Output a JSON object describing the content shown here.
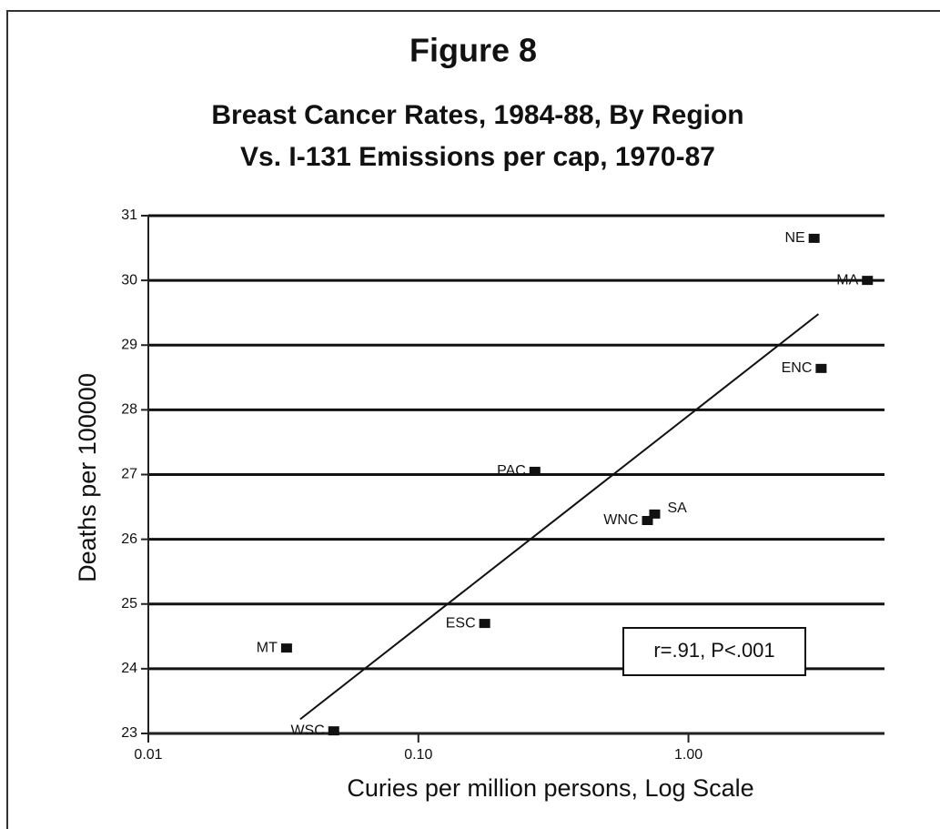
{
  "chart_data": {
    "type": "scatter",
    "title": "Figure 8",
    "subtitle": [
      "Breast Cancer Rates, 1984-88, By Region",
      "Vs. I-131 Emissions per cap, 1970-87"
    ],
    "xlabel": "Curies per million persons, Log Scale",
    "ylabel": "Deaths per 100000",
    "log_x": true,
    "grid": true,
    "color": "#111111",
    "labels": [
      "NE",
      "MA",
      "ENC",
      "PAC",
      "WNC",
      "SA",
      "ESC",
      "MT",
      "WSC"
    ],
    "x": [
      2.92,
      4.6,
      3.1,
      0.27,
      0.705,
      0.75,
      0.176,
      0.0325,
      0.0486
    ],
    "y": [
      30.65,
      30.0,
      28.64,
      27.05,
      26.29,
      26.39,
      24.7,
      24.32,
      23.04
    ],
    "trend_line": {
      "x": [
        0.0365,
        3.03
      ],
      "y": [
        23.22,
        29.48
      ]
    },
    "annotation": "r=.91, P<.001",
    "xlim": [
      0.01,
      5
    ],
    "xticks": [
      0.01,
      {
        "value": 0.1,
        "label": "0.10"
      },
      {
        "value": 1,
        "label": "1.00"
      }
    ],
    "ylim": [
      23,
      31
    ],
    "yticks": [
      23,
      24,
      25,
      26,
      27,
      28,
      29,
      30,
      31
    ]
  }
}
